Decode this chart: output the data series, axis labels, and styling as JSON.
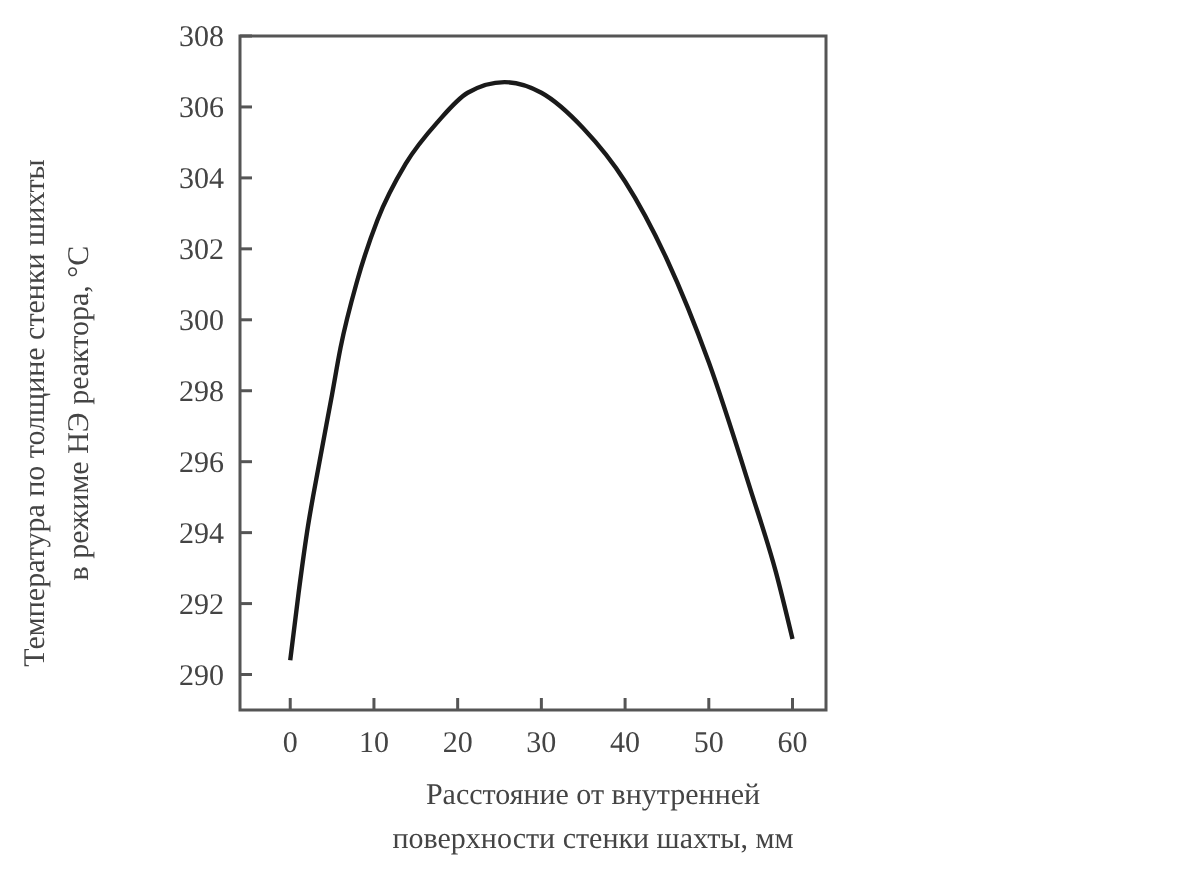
{
  "chart_data": {
    "type": "line",
    "xlabel": "Расстояние от внутренней\nповерхности стенки шахты, мм",
    "ylabel": "Температура по толщине стенки шихты\nв режиме НЭ реактора, °C",
    "x": [
      0,
      1,
      2,
      3.5,
      5,
      6,
      8,
      10.4,
      13.8,
      17.7,
      21.2,
      25.6,
      30,
      35,
      40,
      45,
      50,
      55,
      58,
      60
    ],
    "series": [
      {
        "color": "#1a1a1a",
        "values": [
          290.4,
          292.3,
          294,
          296,
          297.9,
          299.2,
          301.1,
          302.8,
          304.4,
          305.6,
          306.4,
          306.7,
          306.4,
          305.4,
          303.9,
          301.7,
          298.8,
          295.2,
          292.9,
          291
        ]
      }
    ],
    "xlim": [
      -6,
      64
    ],
    "ylim": [
      289,
      308
    ],
    "xticks": [
      0,
      10,
      20,
      30,
      40,
      50,
      60
    ],
    "yticks": [
      290,
      292,
      294,
      296,
      298,
      300,
      302,
      304,
      306,
      308
    ],
    "grid": false,
    "marker": "none",
    "line_style": "solid"
  }
}
